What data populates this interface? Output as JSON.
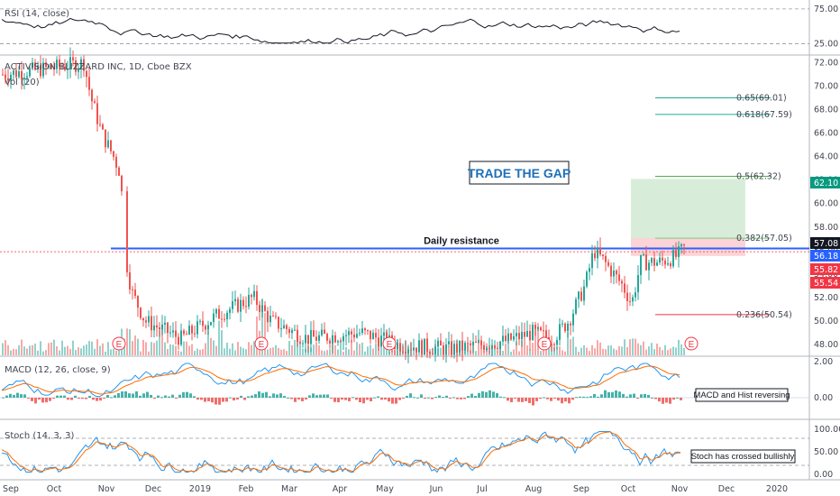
{
  "chart_data": {
    "type": "candlestick",
    "symbol_title": "ACTIVISION BLIZZARD INC, 1D, Cboe BZX",
    "volume_label": "Vol (20)",
    "price_axis": {
      "range": [
        47.0,
        72.5
      ],
      "ticks": [
        "72.00",
        "70.00",
        "68.00",
        "66.00",
        "64.00",
        "62.00",
        "60.00",
        "58.00",
        "56.00",
        "54.00",
        "52.00",
        "50.00",
        "48.00"
      ]
    },
    "time_axis": {
      "ticks": [
        "Sep",
        "Oct",
        "Nov",
        "Dec",
        "2019",
        "Feb",
        "Mar",
        "Apr",
        "May",
        "Jun",
        "Jul",
        "Aug",
        "Sep",
        "Oct",
        "Nov",
        "Dec",
        "2020"
      ]
    },
    "price_badges": [
      {
        "value": "62.10",
        "color": "#089981"
      },
      {
        "value": "57.08",
        "color": "#131722"
      },
      {
        "value": "56.18",
        "color": "#2962ff"
      },
      {
        "value": "55.82",
        "color": "#f23645"
      },
      {
        "value": "55.54",
        "color": "#f23645"
      }
    ],
    "fib_levels": [
      {
        "label": "0.65(69.01)",
        "price": 69.01,
        "color": "#22ab94"
      },
      {
        "label": "0.618(67.59)",
        "price": 67.59,
        "color": "#22ab94"
      },
      {
        "label": "0.5(62.32)",
        "price": 62.32,
        "color": "#4caf50"
      },
      {
        "label": "0.382(57.05)",
        "price": 57.05,
        "color": "#81c784"
      },
      {
        "label": "0.236(50.54)",
        "price": 50.54,
        "color": "#f23645"
      }
    ],
    "resistance": {
      "label": "Daily resistance",
      "price": 56.18
    },
    "headline": "TRADE THE GAP",
    "earnings_marker": "E",
    "rsi": {
      "label": "RSI (14, close)",
      "ticks": [
        "75.00",
        "25.00"
      ]
    },
    "macd": {
      "label": "MACD (12, 26, close, 9)",
      "ticks": [
        "2.00",
        "0.00"
      ],
      "note": "MACD and Hist reversing"
    },
    "stoch": {
      "label": "Stoch (14, 3, 3)",
      "ticks": [
        "100.00",
        "50.00",
        "0.00"
      ],
      "note": "Stoch has crossed bullishly"
    }
  }
}
